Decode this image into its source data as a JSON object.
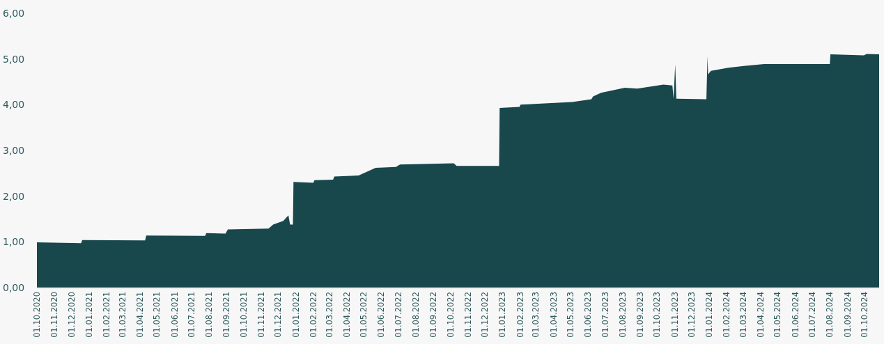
{
  "chart_data": {
    "type": "area",
    "color": "#18474c",
    "grid": false,
    "x": [
      "2020-10-01",
      "2020-12-18",
      "2020-12-20",
      "2021-04-10",
      "2021-04-12",
      "2021-07-25",
      "2021-07-27",
      "2021-08-30",
      "2021-09-03",
      "2021-11-14",
      "2021-11-22",
      "2021-12-10",
      "2021-12-19",
      "2021-12-22",
      "2021-12-27",
      "2021-12-28",
      "2022-02-01",
      "2022-02-03",
      "2022-03-08",
      "2022-03-10",
      "2022-04-22",
      "2022-05-22",
      "2022-06-27",
      "2022-07-04",
      "2022-10-07",
      "2022-10-12",
      "2022-12-26",
      "2022-12-27",
      "2023-01-31",
      "2023-02-02",
      "2023-05-04",
      "2023-06-07",
      "2023-06-10",
      "2023-06-24",
      "2023-08-05",
      "2023-08-27",
      "2023-10-12",
      "2023-10-28",
      "2023-10-30",
      "2023-11-02",
      "2023-11-04",
      "2023-12-27",
      "2023-12-29",
      "2023-12-30",
      "2024-01-04",
      "2024-02-04",
      "2024-03-05",
      "2024-04-07",
      "2024-08-01",
      "2024-08-02",
      "2024-09-30",
      "2024-10-05",
      "2024-10-27"
    ],
    "values": [
      0.99,
      0.97,
      1.04,
      1.03,
      1.14,
      1.13,
      1.19,
      1.18,
      1.27,
      1.29,
      1.38,
      1.46,
      1.58,
      1.38,
      1.38,
      2.31,
      2.29,
      2.35,
      2.36,
      2.43,
      2.45,
      2.62,
      2.64,
      2.69,
      2.72,
      2.66,
      2.66,
      3.93,
      3.95,
      4.0,
      4.06,
      4.12,
      4.18,
      4.26,
      4.37,
      4.35,
      4.44,
      4.42,
      4.13,
      4.88,
      4.13,
      4.12,
      5.06,
      4.66,
      4.74,
      4.81,
      4.85,
      4.89,
      4.89,
      5.1,
      5.08,
      5.11,
      5.1
    ],
    "xlim": [
      "2020-10-01",
      "2024-10-27"
    ],
    "xticks": [
      {
        "value": "2020-10-01",
        "label": "01.10.2020"
      },
      {
        "value": "2020-11-01",
        "label": "01.11.2020"
      },
      {
        "value": "2020-12-01",
        "label": "01.12.2020"
      },
      {
        "value": "2021-01-01",
        "label": "01.01.2021"
      },
      {
        "value": "2021-02-01",
        "label": "01.02.2021"
      },
      {
        "value": "2021-03-01",
        "label": "01.03.2021"
      },
      {
        "value": "2021-04-01",
        "label": "01.04.2021"
      },
      {
        "value": "2021-05-01",
        "label": "01.05.2021"
      },
      {
        "value": "2021-06-01",
        "label": "01.06.2021"
      },
      {
        "value": "2021-07-01",
        "label": "01.07.2021"
      },
      {
        "value": "2021-08-01",
        "label": "01.08.2021"
      },
      {
        "value": "2021-09-01",
        "label": "01.09.2021"
      },
      {
        "value": "2021-10-01",
        "label": "01.10.2021"
      },
      {
        "value": "2021-11-01",
        "label": "01.11.2021"
      },
      {
        "value": "2021-12-01",
        "label": "01.12.2021"
      },
      {
        "value": "2022-01-01",
        "label": "01.01.2022"
      },
      {
        "value": "2022-02-01",
        "label": "01.02.2022"
      },
      {
        "value": "2022-03-01",
        "label": "01.03.2022"
      },
      {
        "value": "2022-04-01",
        "label": "01.04.2022"
      },
      {
        "value": "2022-05-01",
        "label": "01.05.2022"
      },
      {
        "value": "2022-06-01",
        "label": "01.06.2022"
      },
      {
        "value": "2022-07-01",
        "label": "01.07.2022"
      },
      {
        "value": "2022-08-01",
        "label": "01.08.2022"
      },
      {
        "value": "2022-09-01",
        "label": "01.09.2022"
      },
      {
        "value": "2022-10-01",
        "label": "01.10.2022"
      },
      {
        "value": "2022-11-01",
        "label": "01.11.2022"
      },
      {
        "value": "2022-12-01",
        "label": "01.12.2022"
      },
      {
        "value": "2023-01-01",
        "label": "01.01.2023"
      },
      {
        "value": "2023-02-01",
        "label": "01.02.2023"
      },
      {
        "value": "2023-03-01",
        "label": "01.03.2023"
      },
      {
        "value": "2023-04-01",
        "label": "01.04.2023"
      },
      {
        "value": "2023-05-01",
        "label": "01.05.2023"
      },
      {
        "value": "2023-06-01",
        "label": "01.06.2023"
      },
      {
        "value": "2023-07-01",
        "label": "01.07.2023"
      },
      {
        "value": "2023-08-01",
        "label": "01.08.2023"
      },
      {
        "value": "2023-09-01",
        "label": "01.09.2023"
      },
      {
        "value": "2023-10-01",
        "label": "01.10.2023"
      },
      {
        "value": "2023-11-01",
        "label": "01.11.2023"
      },
      {
        "value": "2023-12-01",
        "label": "01.12.2023"
      },
      {
        "value": "2024-01-01",
        "label": "01.01.2024"
      },
      {
        "value": "2024-02-01",
        "label": "01.02.2024"
      },
      {
        "value": "2024-03-01",
        "label": "01.03.2024"
      },
      {
        "value": "2024-04-01",
        "label": "01.04.2024"
      },
      {
        "value": "2024-05-01",
        "label": "01.05.2024"
      },
      {
        "value": "2024-06-01",
        "label": "01.06.2024"
      },
      {
        "value": "2024-07-01",
        "label": "01.07.2024"
      },
      {
        "value": "2024-08-01",
        "label": "01.08.2024"
      },
      {
        "value": "2024-09-01",
        "label": "01.09.2024"
      },
      {
        "value": "2024-10-01",
        "label": "01.10.2024"
      }
    ],
    "ylim": [
      0,
      6
    ],
    "yticks": [
      {
        "value": 0,
        "label": "0,00"
      },
      {
        "value": 1,
        "label": "1,00"
      },
      {
        "value": 2,
        "label": "2,00"
      },
      {
        "value": 3,
        "label": "3,00"
      },
      {
        "value": 4,
        "label": "4,00"
      },
      {
        "value": 5,
        "label": "5,00"
      },
      {
        "value": 6,
        "label": "6,00"
      }
    ]
  }
}
